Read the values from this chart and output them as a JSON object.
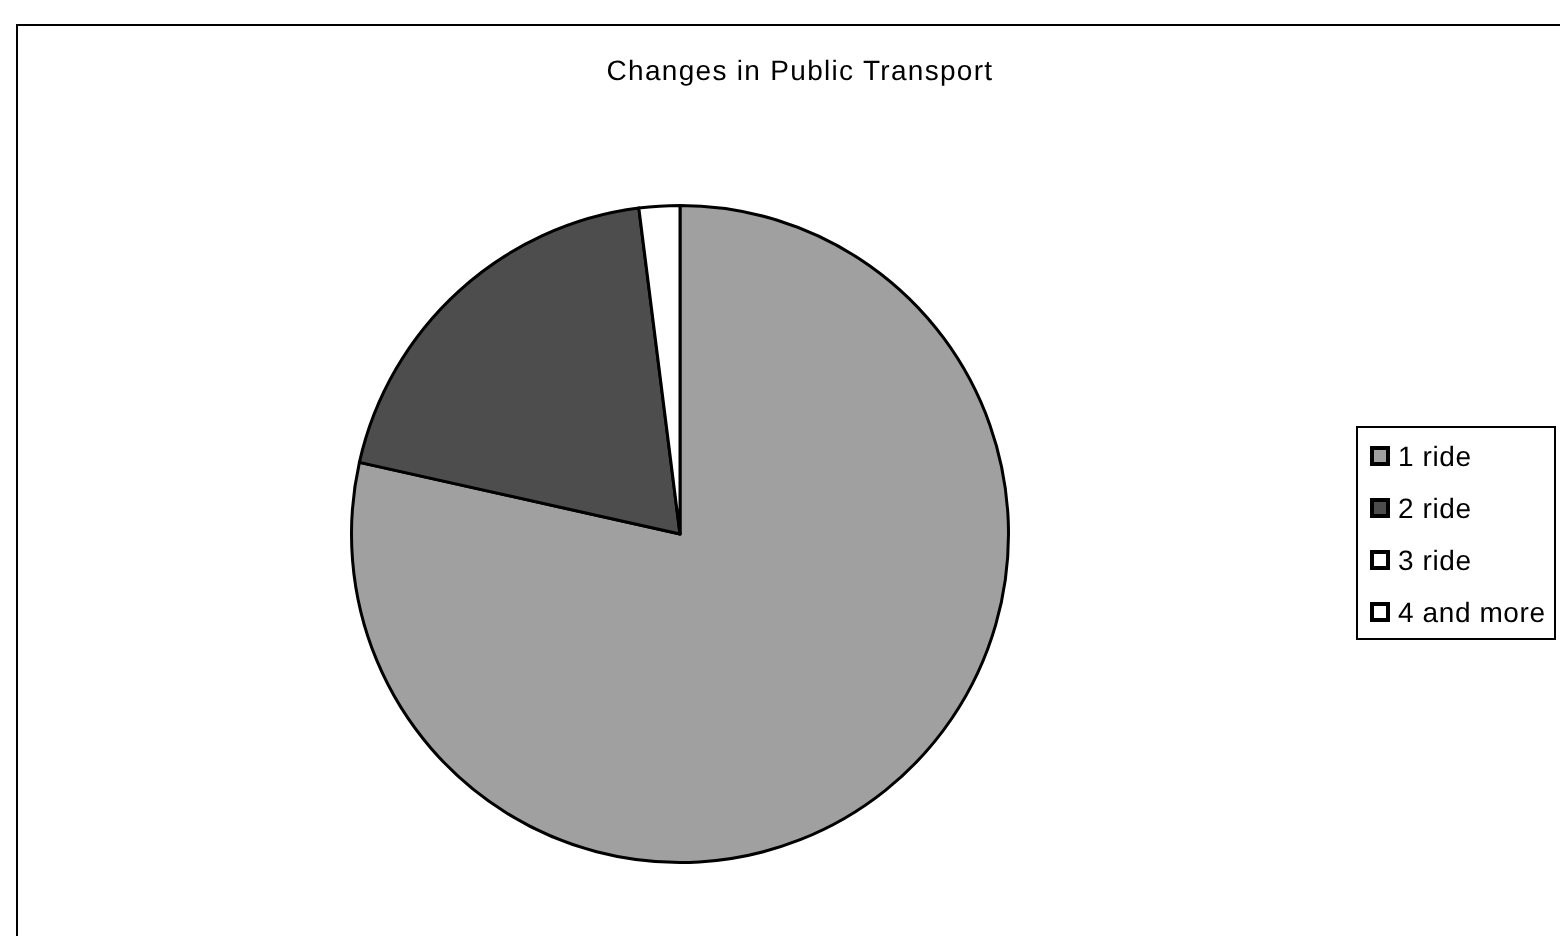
{
  "chart_data": {
    "type": "pie",
    "title": "Changes in Public Transport",
    "categories": [
      "1 ride",
      "2 ride",
      "3 ride",
      "4 and more"
    ],
    "values": [
      78.5,
      19.5,
      2,
      0
    ],
    "colors": [
      "#a0a0a0",
      "#4d4d4d",
      "#ffffff",
      "#ffffff"
    ],
    "legend": "right"
  }
}
